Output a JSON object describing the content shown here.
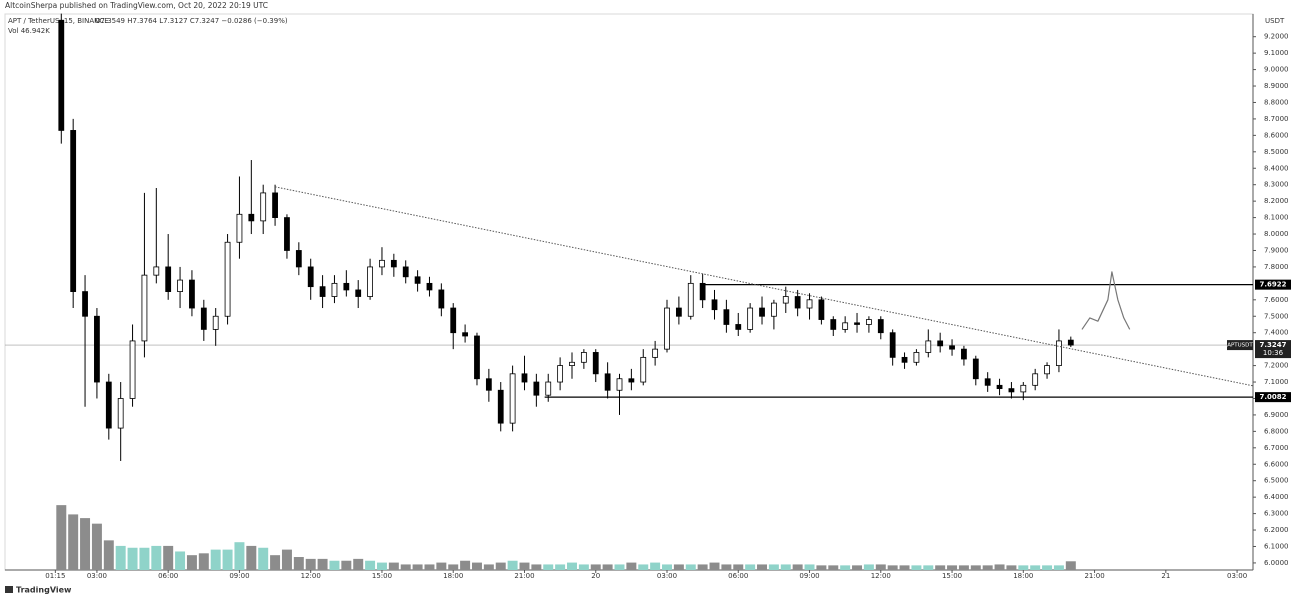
{
  "chart_data": {
    "type": "candlestick",
    "header": "AltcoinSherpa published on TradingView.com, Oct 20, 2022 20:19 UTC",
    "title": "APT / TetherUS, 15, BINANCE",
    "ohlc_legend": "O7.3549 H7.3764 L7.3127 C7.3247 −0.0286 (−0.39%)",
    "volume_label": "Vol 46.942K",
    "y_axis_unit": "USDT",
    "footer": "TradingView",
    "x": [
      1.5,
      2,
      2.5,
      3,
      3.5,
      4,
      4.5,
      5,
      5.5,
      6,
      6.5,
      7,
      7.5,
      8,
      8.5,
      9,
      9.5,
      10,
      10.5,
      11,
      11.5,
      12,
      12.5,
      13,
      13.5,
      14,
      14.5,
      15,
      15.5,
      16,
      16.5,
      17,
      17.5,
      18,
      18.5,
      19,
      19.5,
      20,
      20.5,
      21,
      21.5,
      22,
      22.5,
      23,
      23.5,
      24,
      24.5,
      25,
      25.5,
      26,
      26.5,
      27,
      27.5,
      28,
      28.5,
      29,
      29.5,
      30,
      30.5,
      31,
      31.5,
      32,
      32.5,
      33,
      33.5,
      34,
      34.5,
      35,
      35.5,
      36,
      36.5,
      37,
      37.5,
      38,
      38.5,
      39,
      39.5,
      40,
      40.5,
      41,
      41.5,
      42,
      42.5,
      43,
      43.5,
      44
    ],
    "open": [
      9.3,
      8.63,
      7.65,
      7.5,
      7.1,
      6.82,
      7.0,
      7.35,
      7.75,
      7.8,
      7.65,
      7.72,
      7.55,
      7.42,
      7.5,
      7.95,
      8.12,
      8.08,
      8.25,
      8.1,
      7.9,
      7.8,
      7.68,
      7.62,
      7.7,
      7.66,
      7.62,
      7.8,
      7.84,
      7.8,
      7.74,
      7.7,
      7.66,
      7.55,
      7.4,
      7.38,
      7.12,
      7.05,
      6.85,
      7.15,
      7.1,
      7.02,
      7.1,
      7.2,
      7.22,
      7.28,
      7.15,
      7.05,
      7.12,
      7.1,
      7.25,
      7.3,
      7.55,
      7.5,
      7.7,
      7.6,
      7.54,
      7.45,
      7.42,
      7.55,
      7.5,
      7.58,
      7.62,
      7.55,
      7.6,
      7.48,
      7.42,
      7.46,
      7.45,
      7.48,
      7.4,
      7.25,
      7.22,
      7.28,
      7.35,
      7.32,
      7.3,
      7.24,
      7.12,
      7.08,
      7.06,
      7.04,
      7.08,
      7.15,
      7.2,
      7.3549
    ],
    "high": [
      9.34,
      8.7,
      7.75,
      7.55,
      7.15,
      7.1,
      7.45,
      8.25,
      8.28,
      8.0,
      7.8,
      7.78,
      7.6,
      7.55,
      8.0,
      8.35,
      8.45,
      8.3,
      8.3,
      8.12,
      7.95,
      7.85,
      7.75,
      7.75,
      7.78,
      7.72,
      7.85,
      7.92,
      7.88,
      7.84,
      7.78,
      7.74,
      7.7,
      7.58,
      7.45,
      7.4,
      7.18,
      7.1,
      7.2,
      7.26,
      7.15,
      7.15,
      7.25,
      7.28,
      7.3,
      7.3,
      7.22,
      7.15,
      7.18,
      7.3,
      7.35,
      7.6,
      7.62,
      7.75,
      7.76,
      7.66,
      7.6,
      7.52,
      7.58,
      7.62,
      7.6,
      7.68,
      7.66,
      7.64,
      7.62,
      7.5,
      7.5,
      7.52,
      7.5,
      7.5,
      7.42,
      7.28,
      7.3,
      7.42,
      7.4,
      7.36,
      7.32,
      7.26,
      7.16,
      7.12,
      7.1,
      7.1,
      7.18,
      7.22,
      7.42,
      7.3764
    ],
    "low": [
      8.55,
      7.55,
      6.95,
      7.0,
      6.75,
      6.62,
      6.95,
      7.25,
      7.7,
      7.6,
      7.55,
      7.5,
      7.35,
      7.32,
      7.45,
      7.85,
      8.0,
      8.0,
      8.05,
      7.85,
      7.75,
      7.6,
      7.55,
      7.58,
      7.62,
      7.55,
      7.6,
      7.75,
      7.74,
      7.7,
      7.65,
      7.62,
      7.5,
      7.3,
      7.34,
      7.08,
      6.98,
      6.8,
      6.8,
      7.05,
      6.95,
      6.98,
      7.05,
      7.12,
      7.18,
      7.1,
      7.0,
      6.9,
      7.05,
      7.08,
      7.2,
      7.28,
      7.45,
      7.48,
      7.55,
      7.48,
      7.4,
      7.38,
      7.4,
      7.45,
      7.42,
      7.52,
      7.5,
      7.48,
      7.45,
      7.38,
      7.4,
      7.4,
      7.4,
      7.36,
      7.2,
      7.18,
      7.2,
      7.25,
      7.28,
      7.26,
      7.2,
      7.08,
      7.04,
      7.02,
      7.0,
      6.99,
      7.05,
      7.12,
      7.16,
      7.3127
    ],
    "close": [
      8.63,
      7.65,
      7.5,
      7.1,
      6.82,
      7.0,
      7.35,
      7.75,
      7.8,
      7.65,
      7.72,
      7.55,
      7.42,
      7.5,
      7.95,
      8.12,
      8.08,
      8.25,
      8.1,
      7.9,
      7.8,
      7.68,
      7.62,
      7.7,
      7.66,
      7.62,
      7.8,
      7.84,
      7.8,
      7.74,
      7.7,
      7.66,
      7.55,
      7.4,
      7.38,
      7.12,
      7.05,
      6.85,
      7.15,
      7.1,
      7.02,
      7.1,
      7.2,
      7.22,
      7.28,
      7.15,
      7.05,
      7.12,
      7.1,
      7.25,
      7.3,
      7.55,
      7.5,
      7.7,
      7.6,
      7.54,
      7.45,
      7.42,
      7.55,
      7.5,
      7.58,
      7.62,
      7.55,
      7.6,
      7.48,
      7.42,
      7.46,
      7.45,
      7.48,
      7.4,
      7.25,
      7.22,
      7.28,
      7.35,
      7.32,
      7.3,
      7.24,
      7.12,
      7.08,
      7.06,
      7.04,
      7.08,
      7.15,
      7.2,
      7.35,
      7.3247
    ],
    "up_color": "#ffffff",
    "down_color": "#000000",
    "volume": {
      "values": [
        350,
        300,
        280,
        250,
        160,
        130,
        120,
        120,
        130,
        130,
        100,
        80,
        90,
        110,
        110,
        150,
        130,
        120,
        80,
        110,
        70,
        60,
        60,
        50,
        50,
        60,
        50,
        40,
        40,
        30,
        30,
        30,
        40,
        30,
        50,
        40,
        30,
        40,
        50,
        40,
        30,
        30,
        30,
        40,
        30,
        30,
        30,
        30,
        40,
        30,
        40,
        30,
        30,
        30,
        30,
        40,
        30,
        30,
        30,
        30,
        30,
        30,
        30,
        30,
        25,
        25,
        25,
        25,
        30,
        30,
        25,
        25,
        25,
        25,
        25,
        25,
        25,
        25,
        25,
        30,
        25,
        25,
        25,
        25,
        25,
        47
      ],
      "lim": [
        0,
        3000
      ],
      "up_color": "#8fd3c9",
      "down_color": "#8c8c8c"
    },
    "xlim": [
      -0.87,
      51.67
    ],
    "ylim": [
      5.957,
      9.338
    ],
    "xticks": [
      {
        "value": 1.25,
        "label": "01:15"
      },
      {
        "value": 3,
        "label": "03:00"
      },
      {
        "value": 6,
        "label": "06:00"
      },
      {
        "value": 9,
        "label": "09:00"
      },
      {
        "value": 12,
        "label": "12:00"
      },
      {
        "value": 15,
        "label": "15:00"
      },
      {
        "value": 18,
        "label": "18:00"
      },
      {
        "value": 21,
        "label": "21:00"
      },
      {
        "value": 24,
        "label": "20"
      },
      {
        "value": 27,
        "label": "03:00"
      },
      {
        "value": 30,
        "label": "06:00"
      },
      {
        "value": 33,
        "label": "09:00"
      },
      {
        "value": 36,
        "label": "12:00"
      },
      {
        "value": 39,
        "label": "15:00"
      },
      {
        "value": 42,
        "label": "18:00"
      },
      {
        "value": 45,
        "label": "21:00"
      },
      {
        "value": 48,
        "label": "21"
      },
      {
        "value": 51,
        "label": "03:00"
      }
    ],
    "yticks": [
      {
        "value": 6.0,
        "label": "6.0000"
      },
      {
        "value": 6.1,
        "label": "6.1000"
      },
      {
        "value": 6.2,
        "label": "6.2000"
      },
      {
        "value": 6.3,
        "label": "6.3000"
      },
      {
        "value": 6.4,
        "label": "6.4000"
      },
      {
        "value": 6.5,
        "label": "6.5000"
      },
      {
        "value": 6.6,
        "label": "6.6000"
      },
      {
        "value": 6.7,
        "label": "6.7000"
      },
      {
        "value": 6.8,
        "label": "6.8000"
      },
      {
        "value": 6.9,
        "label": "6.9000"
      },
      {
        "value": 7.0,
        "label": "7.0000"
      },
      {
        "value": 7.1,
        "label": "7.1000"
      },
      {
        "value": 7.2,
        "label": "7.2000"
      },
      {
        "value": 7.4,
        "label": "7.4000"
      },
      {
        "value": 7.5,
        "label": "7.5000"
      },
      {
        "value": 7.6,
        "label": "7.6000"
      },
      {
        "value": 7.8,
        "label": "7.8000"
      },
      {
        "value": 7.9,
        "label": "7.9000"
      },
      {
        "value": 8.0,
        "label": "8.0000"
      },
      {
        "value": 8.1,
        "label": "8.1000"
      },
      {
        "value": 8.2,
        "label": "8.2000"
      },
      {
        "value": 8.3,
        "label": "8.3000"
      },
      {
        "value": 8.4,
        "label": "8.4000"
      },
      {
        "value": 8.5,
        "label": "8.5000"
      },
      {
        "value": 8.6,
        "label": "8.6000"
      },
      {
        "value": 8.7,
        "label": "8.7000"
      },
      {
        "value": 8.8,
        "label": "8.8000"
      },
      {
        "value": 8.9,
        "label": "8.9000"
      },
      {
        "value": 9.0,
        "label": "9.0000"
      },
      {
        "value": 9.1,
        "label": "9.1000"
      },
      {
        "value": 9.2,
        "label": "9.2000"
      }
    ],
    "grid": false,
    "levels": [
      {
        "value": 7.6922,
        "label": "7.6922",
        "start": 28.4
      },
      {
        "value": 7.0082,
        "label": "7.0082",
        "start": 21.85
      }
    ],
    "current_price": {
      "value": 7.3247,
      "label": "7.3247",
      "symbol": "APTUSDT",
      "countdown": "10:36"
    },
    "trendline": {
      "x": [
        10.5,
        51.67
      ],
      "y": [
        8.287,
        7.077
      ]
    },
    "projection": {
      "x": [
        44.47,
        44.8,
        45.14,
        45.56,
        45.73,
        45.98,
        46.23,
        46.48
      ],
      "y": [
        7.42,
        7.49,
        7.47,
        7.6,
        7.77,
        7.6,
        7.49,
        7.42
      ]
    }
  }
}
